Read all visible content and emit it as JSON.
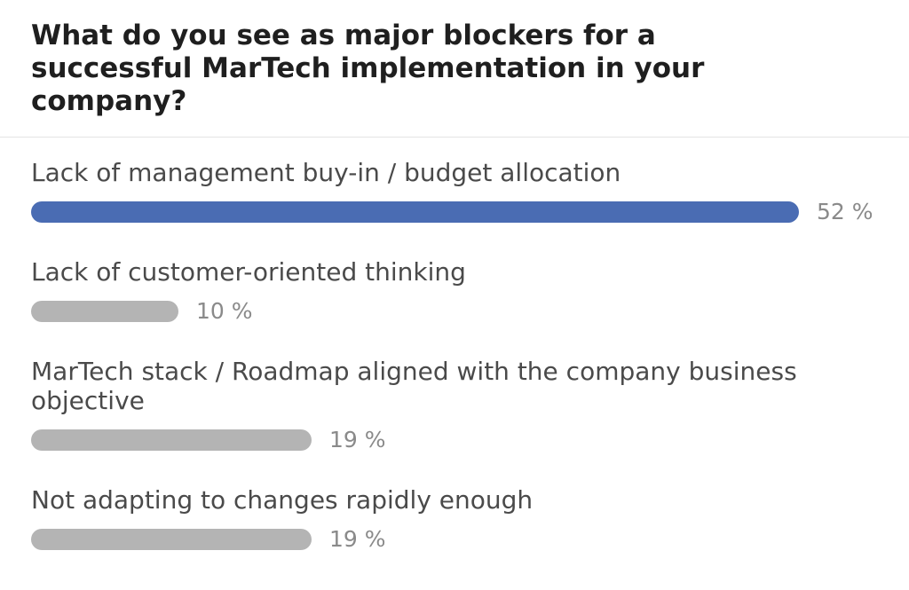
{
  "poll": {
    "question": "What do you see as major blockers for a successful MarTech implementation in your company?",
    "accent_color": "#4a6cb3",
    "bar_color": "#b4b4b4",
    "options": [
      {
        "label": "Lack of management buy-in / budget allocation",
        "percent": 52,
        "percent_label": "52 %",
        "leader": true
      },
      {
        "label": "Lack of customer-oriented thinking",
        "percent": 10,
        "percent_label": "10 %",
        "leader": false
      },
      {
        "label": "MarTech stack / Roadmap aligned with the company business objective",
        "percent": 19,
        "percent_label": "19 %",
        "leader": false
      },
      {
        "label": "Not adapting to changes rapidly enough",
        "percent": 19,
        "percent_label": "19 %",
        "leader": false
      }
    ]
  }
}
